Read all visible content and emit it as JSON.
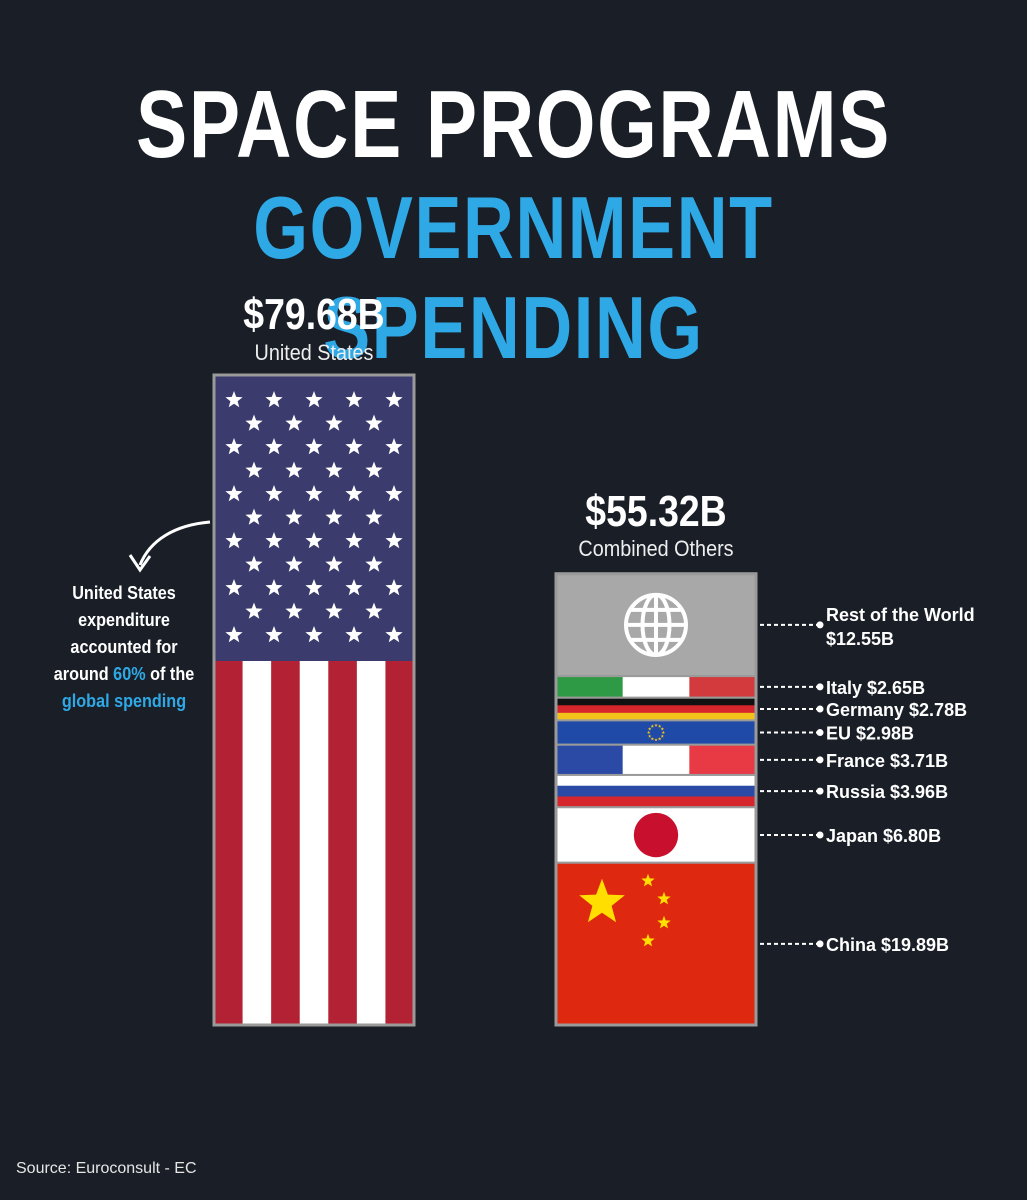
{
  "title_line1": "SPACE PROGRAMS",
  "title_line2": "GOVERNMENT SPENDING",
  "us": {
    "value_label": "$79.68B",
    "name": "United States"
  },
  "others": {
    "value_label": "$55.32B",
    "name": "Combined Others"
  },
  "note": {
    "part1": "United States expenditure accounted for around",
    "pct": "60%",
    "part2": "of the",
    "global": "global",
    "spending": "spending"
  },
  "source": "Source: Euroconsult - EC",
  "chart_data": {
    "type": "bar",
    "categories": [
      "United States",
      "Combined Others"
    ],
    "values": [
      79.68,
      55.32
    ],
    "stack": [
      {
        "name": "Rest of the World",
        "label": "$12.55B",
        "value": 12.55,
        "flag": "globe-icon"
      },
      {
        "name": "Italy",
        "label": "$2.65B",
        "value": 2.65,
        "flag": "italy-flag"
      },
      {
        "name": "Germany",
        "label": "$2.78B",
        "value": 2.78,
        "flag": "germany-flag"
      },
      {
        "name": "EU",
        "label": "$2.98B",
        "value": 2.98,
        "flag": "eu-flag"
      },
      {
        "name": "France",
        "label": "$3.71B",
        "value": 3.71,
        "flag": "france-flag"
      },
      {
        "name": "Russia",
        "label": "$3.96B",
        "value": 3.96,
        "flag": "russia-flag"
      },
      {
        "name": "Japan",
        "label": "$6.80B",
        "value": 6.8,
        "flag": "japan-flag"
      },
      {
        "name": "China",
        "label": "$19.89B",
        "value": 19.89,
        "flag": "china-flag"
      }
    ],
    "colors": {
      "blue": "#3b3b6d",
      "red": "#b22234",
      "accent": "#2fa8e6"
    }
  }
}
